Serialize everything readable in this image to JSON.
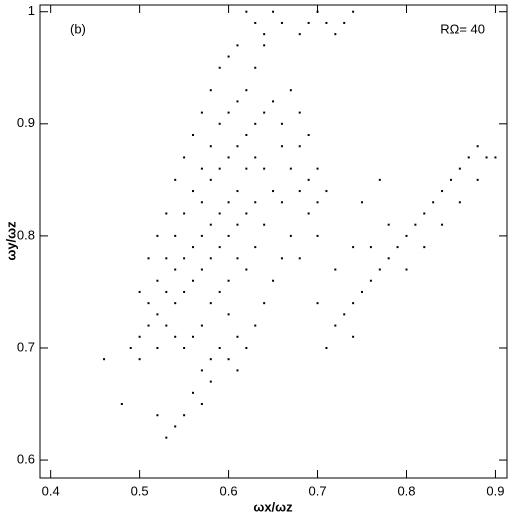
{
  "chart_data": {
    "type": "scatter",
    "annotations": [
      "(b)",
      "RΩ= 40"
    ],
    "x_label": "ωx/ωz",
    "y_label": "ωy/ωz",
    "color": "#000000",
    "xlim": [
      0.388,
      0.913
    ],
    "ylim": [
      0.584,
      1.006
    ],
    "xticks": [
      0.4,
      0.5,
      0.6,
      0.7,
      0.8,
      0.9
    ],
    "yticks": [
      0.6,
      0.7,
      0.8,
      0.9,
      1
    ],
    "x": [
      0.5,
      0.51,
      0.52,
      0.53,
      0.54,
      0.55,
      0.56,
      0.57,
      0.58,
      0.59,
      0.6,
      0.61,
      0.62,
      0.63,
      0.52,
      0.53,
      0.54,
      0.55,
      0.56,
      0.57,
      0.58,
      0.59,
      0.6,
      0.61,
      0.62,
      0.63,
      0.64,
      0.65,
      0.55,
      0.56,
      0.57,
      0.58,
      0.59,
      0.6,
      0.61,
      0.62,
      0.63,
      0.64,
      0.66,
      0.67,
      0.68,
      0.69,
      0.7,
      0.66,
      0.67,
      0.68,
      0.66,
      0.65,
      0.64,
      0.63,
      0.62,
      0.61,
      0.6,
      0.59,
      0.58,
      0.57,
      0.56,
      0.55,
      0.6,
      0.61,
      0.62,
      0.63,
      0.64,
      0.65,
      0.64,
      0.63,
      0.62,
      0.61,
      0.6,
      0.59,
      0.58,
      0.57,
      0.56,
      0.55,
      0.54,
      0.53,
      0.51,
      0.5,
      0.49,
      0.5,
      0.52,
      0.54,
      0.53,
      0.52,
      0.51,
      0.54,
      0.57,
      0.58,
      0.59,
      0.6,
      0.61,
      0.66,
      0.68,
      0.7,
      0.71,
      0.7,
      0.69,
      0.67,
      0.68,
      0.69,
      0.56,
      0.57,
      0.58,
      0.59,
      0.55,
      0.54,
      0.53,
      0.52,
      0.57,
      0.58,
      0.6,
      0.61,
      0.48,
      0.46,
      0.62,
      0.63,
      0.65,
      0.66,
      0.68,
      0.7,
      0.71,
      0.72,
      0.73,
      0.74,
      0.69,
      0.64,
      0.72,
      0.73,
      0.74,
      0.75,
      0.76,
      0.77,
      0.78,
      0.79,
      0.8,
      0.81,
      0.82,
      0.83,
      0.84,
      0.85,
      0.86,
      0.87,
      0.88,
      0.89,
      0.78,
      0.76,
      0.8,
      0.82,
      0.84,
      0.74,
      0.71,
      0.7,
      0.72,
      0.74,
      0.75,
      0.77,
      0.86,
      0.88,
      0.9
    ],
    "values": [
      0.71,
      0.72,
      0.73,
      0.72,
      0.74,
      0.75,
      0.76,
      0.77,
      0.78,
      0.79,
      0.8,
      0.81,
      0.82,
      0.83,
      0.76,
      0.78,
      0.8,
      0.82,
      0.84,
      0.83,
      0.85,
      0.86,
      0.87,
      0.88,
      0.89,
      0.9,
      0.91,
      0.92,
      0.87,
      0.89,
      0.91,
      0.93,
      0.95,
      0.96,
      0.97,
      0.93,
      0.95,
      0.97,
      0.88,
      0.86,
      0.84,
      0.82,
      0.8,
      0.83,
      0.8,
      0.78,
      0.78,
      0.76,
      0.74,
      0.72,
      0.7,
      0.71,
      0.73,
      0.75,
      0.74,
      0.72,
      0.71,
      0.7,
      0.76,
      0.78,
      0.77,
      0.79,
      0.81,
      0.84,
      0.86,
      0.87,
      0.86,
      0.84,
      0.83,
      0.82,
      0.81,
      0.8,
      0.79,
      0.78,
      0.77,
      0.75,
      0.74,
      0.75,
      0.7,
      0.69,
      0.7,
      0.71,
      0.82,
      0.8,
      0.78,
      0.85,
      0.86,
      0.88,
      0.9,
      0.91,
      0.92,
      0.9,
      0.88,
      0.86,
      0.84,
      0.83,
      0.85,
      0.93,
      0.91,
      0.89,
      0.66,
      0.68,
      0.69,
      0.7,
      0.64,
      0.63,
      0.62,
      0.64,
      0.65,
      0.67,
      0.69,
      0.68,
      0.65,
      0.69,
      1,
      0.99,
      1,
      0.99,
      0.98,
      1,
      0.99,
      0.98,
      0.99,
      1,
      0.99,
      0.98,
      0.72,
      0.73,
      0.74,
      0.75,
      0.76,
      0.77,
      0.78,
      0.79,
      0.8,
      0.81,
      0.82,
      0.83,
      0.84,
      0.85,
      0.86,
      0.87,
      0.88,
      0.87,
      0.81,
      0.79,
      0.77,
      0.79,
      0.81,
      0.71,
      0.7,
      0.74,
      0.77,
      0.79,
      0.83,
      0.85,
      0.83,
      0.85,
      0.87
    ]
  }
}
